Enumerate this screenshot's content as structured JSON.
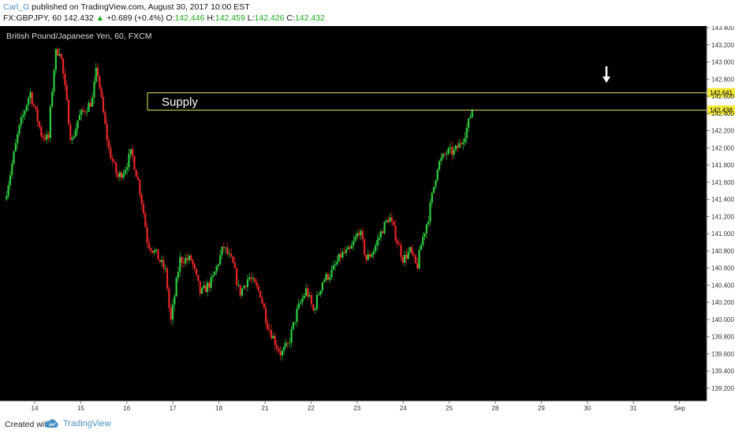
{
  "header": {
    "user": "Carl_G",
    "published": " published on TradingView.com, August 30, 2017 10:00 EST",
    "symbol": "FX:GBPJPY, 60",
    "last": "142.432",
    "change": "+0.689 (+0.4%)",
    "o_label": "O:",
    "o_value": "142.446",
    "h_label": "H:",
    "h_value": "142.459",
    "l_label": "L:",
    "l_value": "142.426",
    "c_label": "C:",
    "c_value": "142.432"
  },
  "footer": {
    "created": "Created with",
    "brand": "TradingView"
  },
  "colors": {
    "background": "#000000",
    "up": "#2ecc40",
    "down": "#e8262a",
    "level_line": "#e8e36a",
    "label_bg": "#f3ea3a"
  },
  "chart_data": {
    "type": "candlestick",
    "title": "British Pound/Japanese Yen, 60, FXCM",
    "y_ticks": [
      143.4,
      143.2,
      143.0,
      142.8,
      142.6,
      142.4,
      142.2,
      142.0,
      141.8,
      141.6,
      141.4,
      141.2,
      141.0,
      140.8,
      140.6,
      140.4,
      140.2,
      140.0,
      139.8,
      139.6,
      139.4,
      139.2
    ],
    "y_tick_labels": [
      "143.400",
      "143.200",
      "143.000",
      "142.800",
      "142.600",
      "142.400",
      "142.200",
      "142.000",
      "141.800",
      "141.600",
      "141.400",
      "141.200",
      "141.000",
      "140.800",
      "140.600",
      "140.400",
      "140.200",
      "140.000",
      "139.800",
      "139.600",
      "139.400",
      "139.200"
    ],
    "ylim": [
      139.08,
      143.44
    ],
    "x_ticks": [
      "14",
      "15",
      "16",
      "17",
      "18",
      "21",
      "22",
      "23",
      "24",
      "25",
      "28",
      "29",
      "30",
      "31",
      "Sep"
    ],
    "levels": [
      {
        "value": 142.641,
        "label": "142.641"
      },
      {
        "value": 142.438,
        "label": "142.438"
      }
    ],
    "zone_label": "Supply",
    "anchors": [
      {
        "t": 0,
        "p": 141.4
      },
      {
        "t": 0.1,
        "p": 141.65
      },
      {
        "t": 0.3,
        "p": 142.2
      },
      {
        "t": 0.55,
        "p": 142.65
      },
      {
        "t": 0.7,
        "p": 142.35
      },
      {
        "t": 0.8,
        "p": 142.15
      },
      {
        "t": 0.95,
        "p": 142.1
      },
      {
        "t": 1.0,
        "p": 142.5
      },
      {
        "t": 1.1,
        "p": 143.1
      },
      {
        "t": 1.2,
        "p": 143.15
      },
      {
        "t": 1.35,
        "p": 142.5
      },
      {
        "t": 1.45,
        "p": 142.05
      },
      {
        "t": 1.6,
        "p": 142.35
      },
      {
        "t": 1.9,
        "p": 142.55
      },
      {
        "t": 2.0,
        "p": 142.95
      },
      {
        "t": 2.1,
        "p": 142.55
      },
      {
        "t": 2.25,
        "p": 142.0
      },
      {
        "t": 2.45,
        "p": 141.65
      },
      {
        "t": 2.6,
        "p": 141.75
      },
      {
        "t": 2.75,
        "p": 141.95
      },
      {
        "t": 2.9,
        "p": 141.6
      },
      {
        "t": 3.0,
        "p": 141.3
      },
      {
        "t": 3.1,
        "p": 140.9
      },
      {
        "t": 3.3,
        "p": 140.75
      },
      {
        "t": 3.5,
        "p": 140.55
      },
      {
        "t": 3.6,
        "p": 139.95
      },
      {
        "t": 3.8,
        "p": 140.7
      },
      {
        "t": 4.05,
        "p": 140.7
      },
      {
        "t": 4.25,
        "p": 140.3
      },
      {
        "t": 4.5,
        "p": 140.45
      },
      {
        "t": 4.75,
        "p": 140.85
      },
      {
        "t": 4.95,
        "p": 140.65
      },
      {
        "t": 5.1,
        "p": 140.3
      },
      {
        "t": 5.3,
        "p": 140.5
      },
      {
        "t": 5.55,
        "p": 140.3
      },
      {
        "t": 5.7,
        "p": 139.95
      },
      {
        "t": 5.9,
        "p": 139.7
      },
      {
        "t": 6.0,
        "p": 139.6
      },
      {
        "t": 6.15,
        "p": 139.7
      },
      {
        "t": 6.35,
        "p": 140.1
      },
      {
        "t": 6.55,
        "p": 140.35
      },
      {
        "t": 6.7,
        "p": 140.1
      },
      {
        "t": 6.9,
        "p": 140.45
      },
      {
        "t": 7.1,
        "p": 140.55
      },
      {
        "t": 7.3,
        "p": 140.75
      },
      {
        "t": 7.5,
        "p": 140.8
      },
      {
        "t": 7.7,
        "p": 141.05
      },
      {
        "t": 7.85,
        "p": 140.7
      },
      {
        "t": 8.0,
        "p": 140.8
      },
      {
        "t": 8.2,
        "p": 141.05
      },
      {
        "t": 8.35,
        "p": 141.2
      },
      {
        "t": 8.5,
        "p": 140.95
      },
      {
        "t": 8.65,
        "p": 140.7
      },
      {
        "t": 8.8,
        "p": 140.8
      },
      {
        "t": 8.95,
        "p": 140.6
      },
      {
        "t": 9.05,
        "p": 140.9
      },
      {
        "t": 9.2,
        "p": 141.2
      },
      {
        "t": 9.4,
        "p": 141.8
      },
      {
        "t": 9.6,
        "p": 141.95
      },
      {
        "t": 9.75,
        "p": 141.95
      },
      {
        "t": 9.9,
        "p": 142.05
      },
      {
        "t": 10.05,
        "p": 142.25
      },
      {
        "t": 10.15,
        "p": 142.45
      }
    ],
    "marker": "down-arrow"
  }
}
